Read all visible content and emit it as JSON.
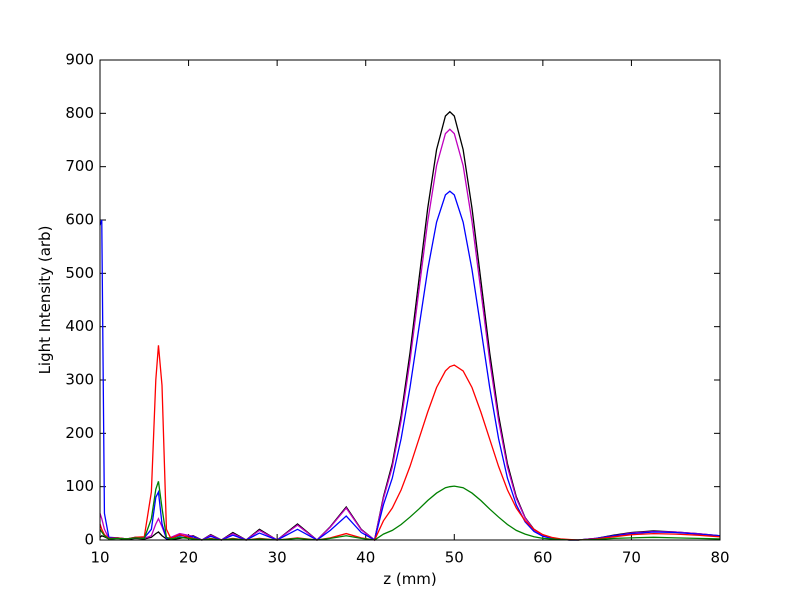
{
  "chart_data": {
    "type": "line",
    "xlabel": "z (mm)",
    "ylabel": "Light Intensity (arb)",
    "x": [
      10,
      10.2,
      10.5,
      11,
      12,
      13,
      14,
      15,
      15.8,
      16.3,
      16.6,
      17,
      17.5,
      18,
      19,
      20.5,
      21.5,
      22.5,
      23.7,
      25,
      26.5,
      28,
      30,
      32.3,
      34.5,
      36,
      37.8,
      39.5,
      41,
      42,
      43,
      44,
      45,
      46,
      47,
      48,
      49,
      49.5,
      50,
      51,
      52,
      53,
      54,
      55,
      56,
      57,
      58,
      59,
      60,
      61,
      62,
      63,
      64,
      66,
      68,
      70,
      72.5,
      75,
      77.5,
      80
    ],
    "series": [
      {
        "color": "#000000",
        "values": [
          5,
          8,
          6,
          2,
          3,
          1,
          3,
          2,
          5,
          12,
          15,
          8,
          2,
          1,
          3,
          8,
          0,
          10,
          0,
          14,
          0,
          20,
          0,
          30,
          0,
          25,
          62,
          20,
          0,
          81,
          143,
          234,
          351,
          487,
          622,
          732,
          795,
          803,
          795,
          732,
          622,
          487,
          351,
          234,
          143,
          81,
          42,
          20,
          9,
          4,
          1,
          0,
          0,
          3,
          9,
          14,
          17,
          15,
          12,
          8
        ]
      },
      {
        "color": "#bf00bf",
        "values": [
          50,
          40,
          20,
          3,
          4,
          2,
          4,
          3,
          8,
          30,
          40,
          25,
          3,
          5,
          12,
          7,
          0,
          9,
          0,
          12,
          0,
          18,
          0,
          28,
          0,
          24,
          60,
          19,
          0,
          78,
          137,
          224,
          336,
          467,
          597,
          702,
          762,
          770,
          762,
          702,
          597,
          467,
          336,
          224,
          137,
          78,
          41,
          19,
          8,
          3,
          1,
          0,
          0,
          3,
          8,
          13,
          16,
          15,
          12,
          8
        ]
      },
      {
        "color": "#0000ff",
        "values": [
          590,
          600,
          50,
          5,
          4,
          2,
          5,
          4,
          20,
          80,
          90,
          30,
          3,
          4,
          8,
          6,
          0,
          7,
          0,
          9,
          0,
          13,
          0,
          20,
          0,
          18,
          45,
          14,
          0,
          66,
          116,
          190,
          286,
          397,
          507,
          596,
          647,
          654,
          647,
          596,
          507,
          397,
          286,
          190,
          116,
          66,
          34,
          16,
          7,
          3,
          1,
          0,
          0,
          3,
          8,
          12,
          15,
          14,
          11,
          8
        ]
      },
      {
        "color": "#ff0000",
        "values": [
          30,
          20,
          10,
          3,
          4,
          2,
          5,
          6,
          90,
          300,
          365,
          290,
          20,
          3,
          10,
          3,
          0,
          3,
          0,
          3,
          0,
          3,
          0,
          4,
          0,
          4,
          12,
          4,
          0,
          36,
          60,
          94,
          138,
          189,
          240,
          286,
          317,
          325,
          328,
          317,
          286,
          240,
          189,
          138,
          94,
          60,
          36,
          20,
          10,
          5,
          2,
          1,
          0,
          2,
          6,
          10,
          12,
          11,
          9,
          6
        ]
      },
      {
        "color": "#008000",
        "values": [
          20,
          15,
          8,
          2,
          3,
          2,
          4,
          3,
          40,
          95,
          110,
          60,
          5,
          2,
          5,
          2,
          0,
          2,
          0,
          2,
          0,
          2,
          0,
          3,
          0,
          3,
          8,
          3,
          0,
          11,
          18,
          29,
          43,
          58,
          74,
          88,
          98,
          100,
          101,
          98,
          88,
          74,
          58,
          43,
          29,
          18,
          11,
          6,
          3,
          2,
          1,
          0,
          0,
          1,
          3,
          4,
          5,
          4,
          3,
          2
        ]
      }
    ],
    "xlim": [
      10,
      80
    ],
    "xticks": [
      10,
      20,
      30,
      40,
      50,
      60,
      70,
      80
    ],
    "ylim": [
      0,
      900
    ],
    "yticks": [
      0,
      100,
      200,
      300,
      400,
      500,
      600,
      700,
      800,
      900
    ],
    "grid": false
  }
}
